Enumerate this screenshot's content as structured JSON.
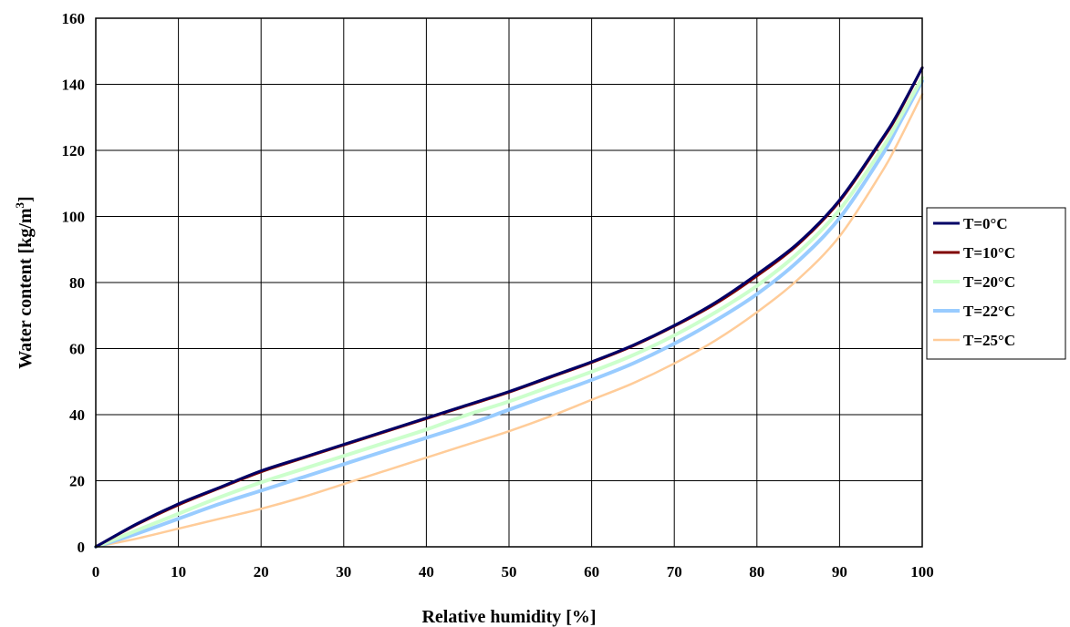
{
  "chart_data": {
    "type": "line",
    "title": "",
    "xlabel": "Relative humidity [%]",
    "ylabel_main": "Water content [kg/m",
    "ylabel_sup": "3",
    "ylabel_end": "]",
    "xlim": [
      0,
      100
    ],
    "ylim": [
      0,
      160
    ],
    "x_ticks": [
      0,
      10,
      20,
      30,
      40,
      50,
      60,
      70,
      80,
      90,
      100
    ],
    "y_ticks": [
      0,
      20,
      40,
      60,
      80,
      100,
      120,
      140,
      160
    ],
    "grid": true,
    "legend_position": "right",
    "x": [
      0,
      5,
      10,
      15,
      20,
      25,
      30,
      35,
      40,
      45,
      50,
      55,
      60,
      65,
      70,
      75,
      80,
      85,
      90,
      95,
      97,
      100
    ],
    "series": [
      {
        "name": "T=0°C",
        "color": "#000066",
        "values": [
          0,
          7,
          13,
          18,
          23,
          27,
          31,
          35,
          39,
          43,
          47,
          51.5,
          56,
          61,
          67,
          74,
          82.5,
          92,
          105,
          123,
          131,
          145
        ]
      },
      {
        "name": "T=10°C",
        "color": "#800000",
        "values": [
          0,
          6.8,
          12.7,
          17.8,
          22.7,
          26.8,
          30.8,
          34.8,
          38.8,
          42.8,
          46.8,
          51.3,
          55.8,
          60.8,
          66.8,
          73.6,
          82,
          91.6,
          104.6,
          122.6,
          130.6,
          145
        ]
      },
      {
        "name": "T=20°C",
        "color": "#ccffcc",
        "values": [
          0,
          5,
          10,
          15,
          19.5,
          23.5,
          27.5,
          31.5,
          35.5,
          40,
          44,
          48.5,
          53,
          58,
          64,
          71,
          79,
          89,
          102,
          120,
          128.5,
          142
        ]
      },
      {
        "name": "T=22°C",
        "color": "#99ccff",
        "values": [
          0,
          4,
          8.5,
          13,
          17,
          21,
          25,
          29,
          33,
          37,
          41.5,
          46,
          50.5,
          55.5,
          61.5,
          68.5,
          76.5,
          86.5,
          99.5,
          118,
          127,
          141
        ]
      },
      {
        "name": "T=25°C",
        "color": "#ffcc99",
        "values": [
          0,
          2.5,
          5.5,
          8.5,
          11.5,
          15,
          19,
          23,
          27,
          31,
          35,
          39.5,
          44.5,
          49.5,
          55.5,
          62.5,
          71,
          81,
          94,
          113,
          122,
          137
        ]
      }
    ]
  }
}
